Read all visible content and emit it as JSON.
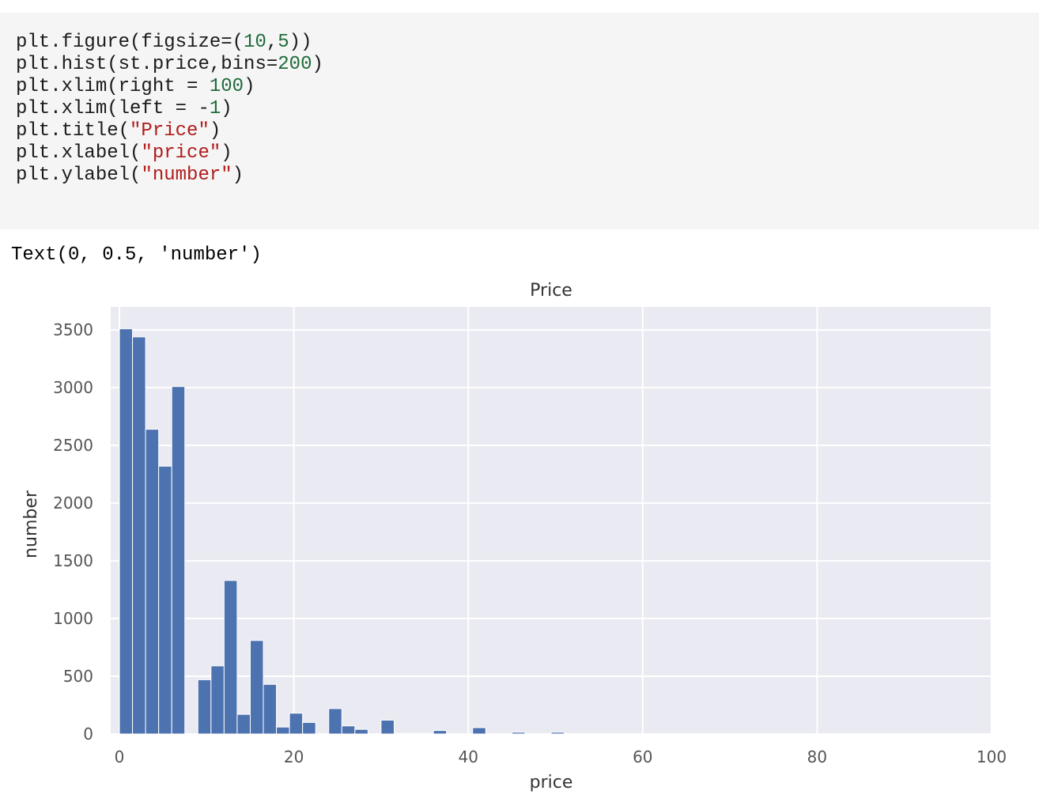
{
  "code_cell": {
    "lines": [
      [
        {
          "t": "plt.figure(figsize=(",
          "k": "plain"
        },
        {
          "t": "10",
          "k": "num"
        },
        {
          "t": ",",
          "k": "plain"
        },
        {
          "t": "5",
          "k": "num"
        },
        {
          "t": "))",
          "k": "plain"
        }
      ],
      [
        {
          "t": "plt.hist(st.price,bins=",
          "k": "plain"
        },
        {
          "t": "200",
          "k": "num"
        },
        {
          "t": ")",
          "k": "plain"
        }
      ],
      [
        {
          "t": "plt.xlim(right = ",
          "k": "plain"
        },
        {
          "t": "100",
          "k": "num"
        },
        {
          "t": ")",
          "k": "plain"
        }
      ],
      [
        {
          "t": "plt.xlim(left = -",
          "k": "plain"
        },
        {
          "t": "1",
          "k": "num"
        },
        {
          "t": ")",
          "k": "plain"
        }
      ],
      [
        {
          "t": "plt.title(",
          "k": "plain"
        },
        {
          "t": "\"Price\"",
          "k": "str"
        },
        {
          "t": ")",
          "k": "plain"
        }
      ],
      [
        {
          "t": "plt.xlabel(",
          "k": "plain"
        },
        {
          "t": "\"price\"",
          "k": "str"
        },
        {
          "t": ")",
          "k": "plain"
        }
      ],
      [
        {
          "t": "plt.ylabel(",
          "k": "plain"
        },
        {
          "t": "\"number\"",
          "k": "str"
        },
        {
          "t": ")",
          "k": "plain"
        }
      ]
    ],
    "colors": {
      "background": "#f5f5f5",
      "text": "#1a1a1a",
      "number": "#1f6b3a",
      "string": "#b01c1c"
    }
  },
  "output": {
    "text": "Text(0, 0.5, 'number')"
  },
  "chart_data": {
    "type": "bar",
    "title": "Price",
    "xlabel": "price",
    "ylabel": "number",
    "xlim": [
      -1,
      100
    ],
    "ylim": [
      0,
      3700
    ],
    "xticks": [
      0,
      20,
      40,
      60,
      80,
      100
    ],
    "yticks": [
      0,
      500,
      1000,
      1500,
      2000,
      2500,
      3000,
      3500
    ],
    "grid": true,
    "bar_color": "#4c72b0",
    "axes_background": "#eaeaf2",
    "grid_color": "#ffffff",
    "bin_width": 1.5,
    "bins": [
      {
        "x": 0.0,
        "count": 3510
      },
      {
        "x": 1.5,
        "count": 3440
      },
      {
        "x": 3.0,
        "count": 2640
      },
      {
        "x": 4.5,
        "count": 2320
      },
      {
        "x": 6.0,
        "count": 3010
      },
      {
        "x": 7.5,
        "count": 0
      },
      {
        "x": 9.0,
        "count": 470
      },
      {
        "x": 10.5,
        "count": 590
      },
      {
        "x": 12.0,
        "count": 1330
      },
      {
        "x": 13.5,
        "count": 170
      },
      {
        "x": 15.0,
        "count": 810
      },
      {
        "x": 16.5,
        "count": 430
      },
      {
        "x": 18.0,
        "count": 60
      },
      {
        "x": 19.5,
        "count": 180
      },
      {
        "x": 21.0,
        "count": 100
      },
      {
        "x": 22.5,
        "count": 0
      },
      {
        "x": 24.0,
        "count": 220
      },
      {
        "x": 25.5,
        "count": 70
      },
      {
        "x": 27.0,
        "count": 40
      },
      {
        "x": 28.5,
        "count": 0
      },
      {
        "x": 30.0,
        "count": 120
      },
      {
        "x": 31.5,
        "count": 5
      },
      {
        "x": 33.0,
        "count": 5
      },
      {
        "x": 34.5,
        "count": 5
      },
      {
        "x": 36.0,
        "count": 30
      },
      {
        "x": 37.5,
        "count": 0
      },
      {
        "x": 39.0,
        "count": 0
      },
      {
        "x": 40.5,
        "count": 55
      },
      {
        "x": 42.0,
        "count": 0
      },
      {
        "x": 43.5,
        "count": 0
      },
      {
        "x": 45.0,
        "count": 15
      },
      {
        "x": 46.5,
        "count": 0
      },
      {
        "x": 48.0,
        "count": 0
      },
      {
        "x": 49.5,
        "count": 15
      }
    ]
  }
}
